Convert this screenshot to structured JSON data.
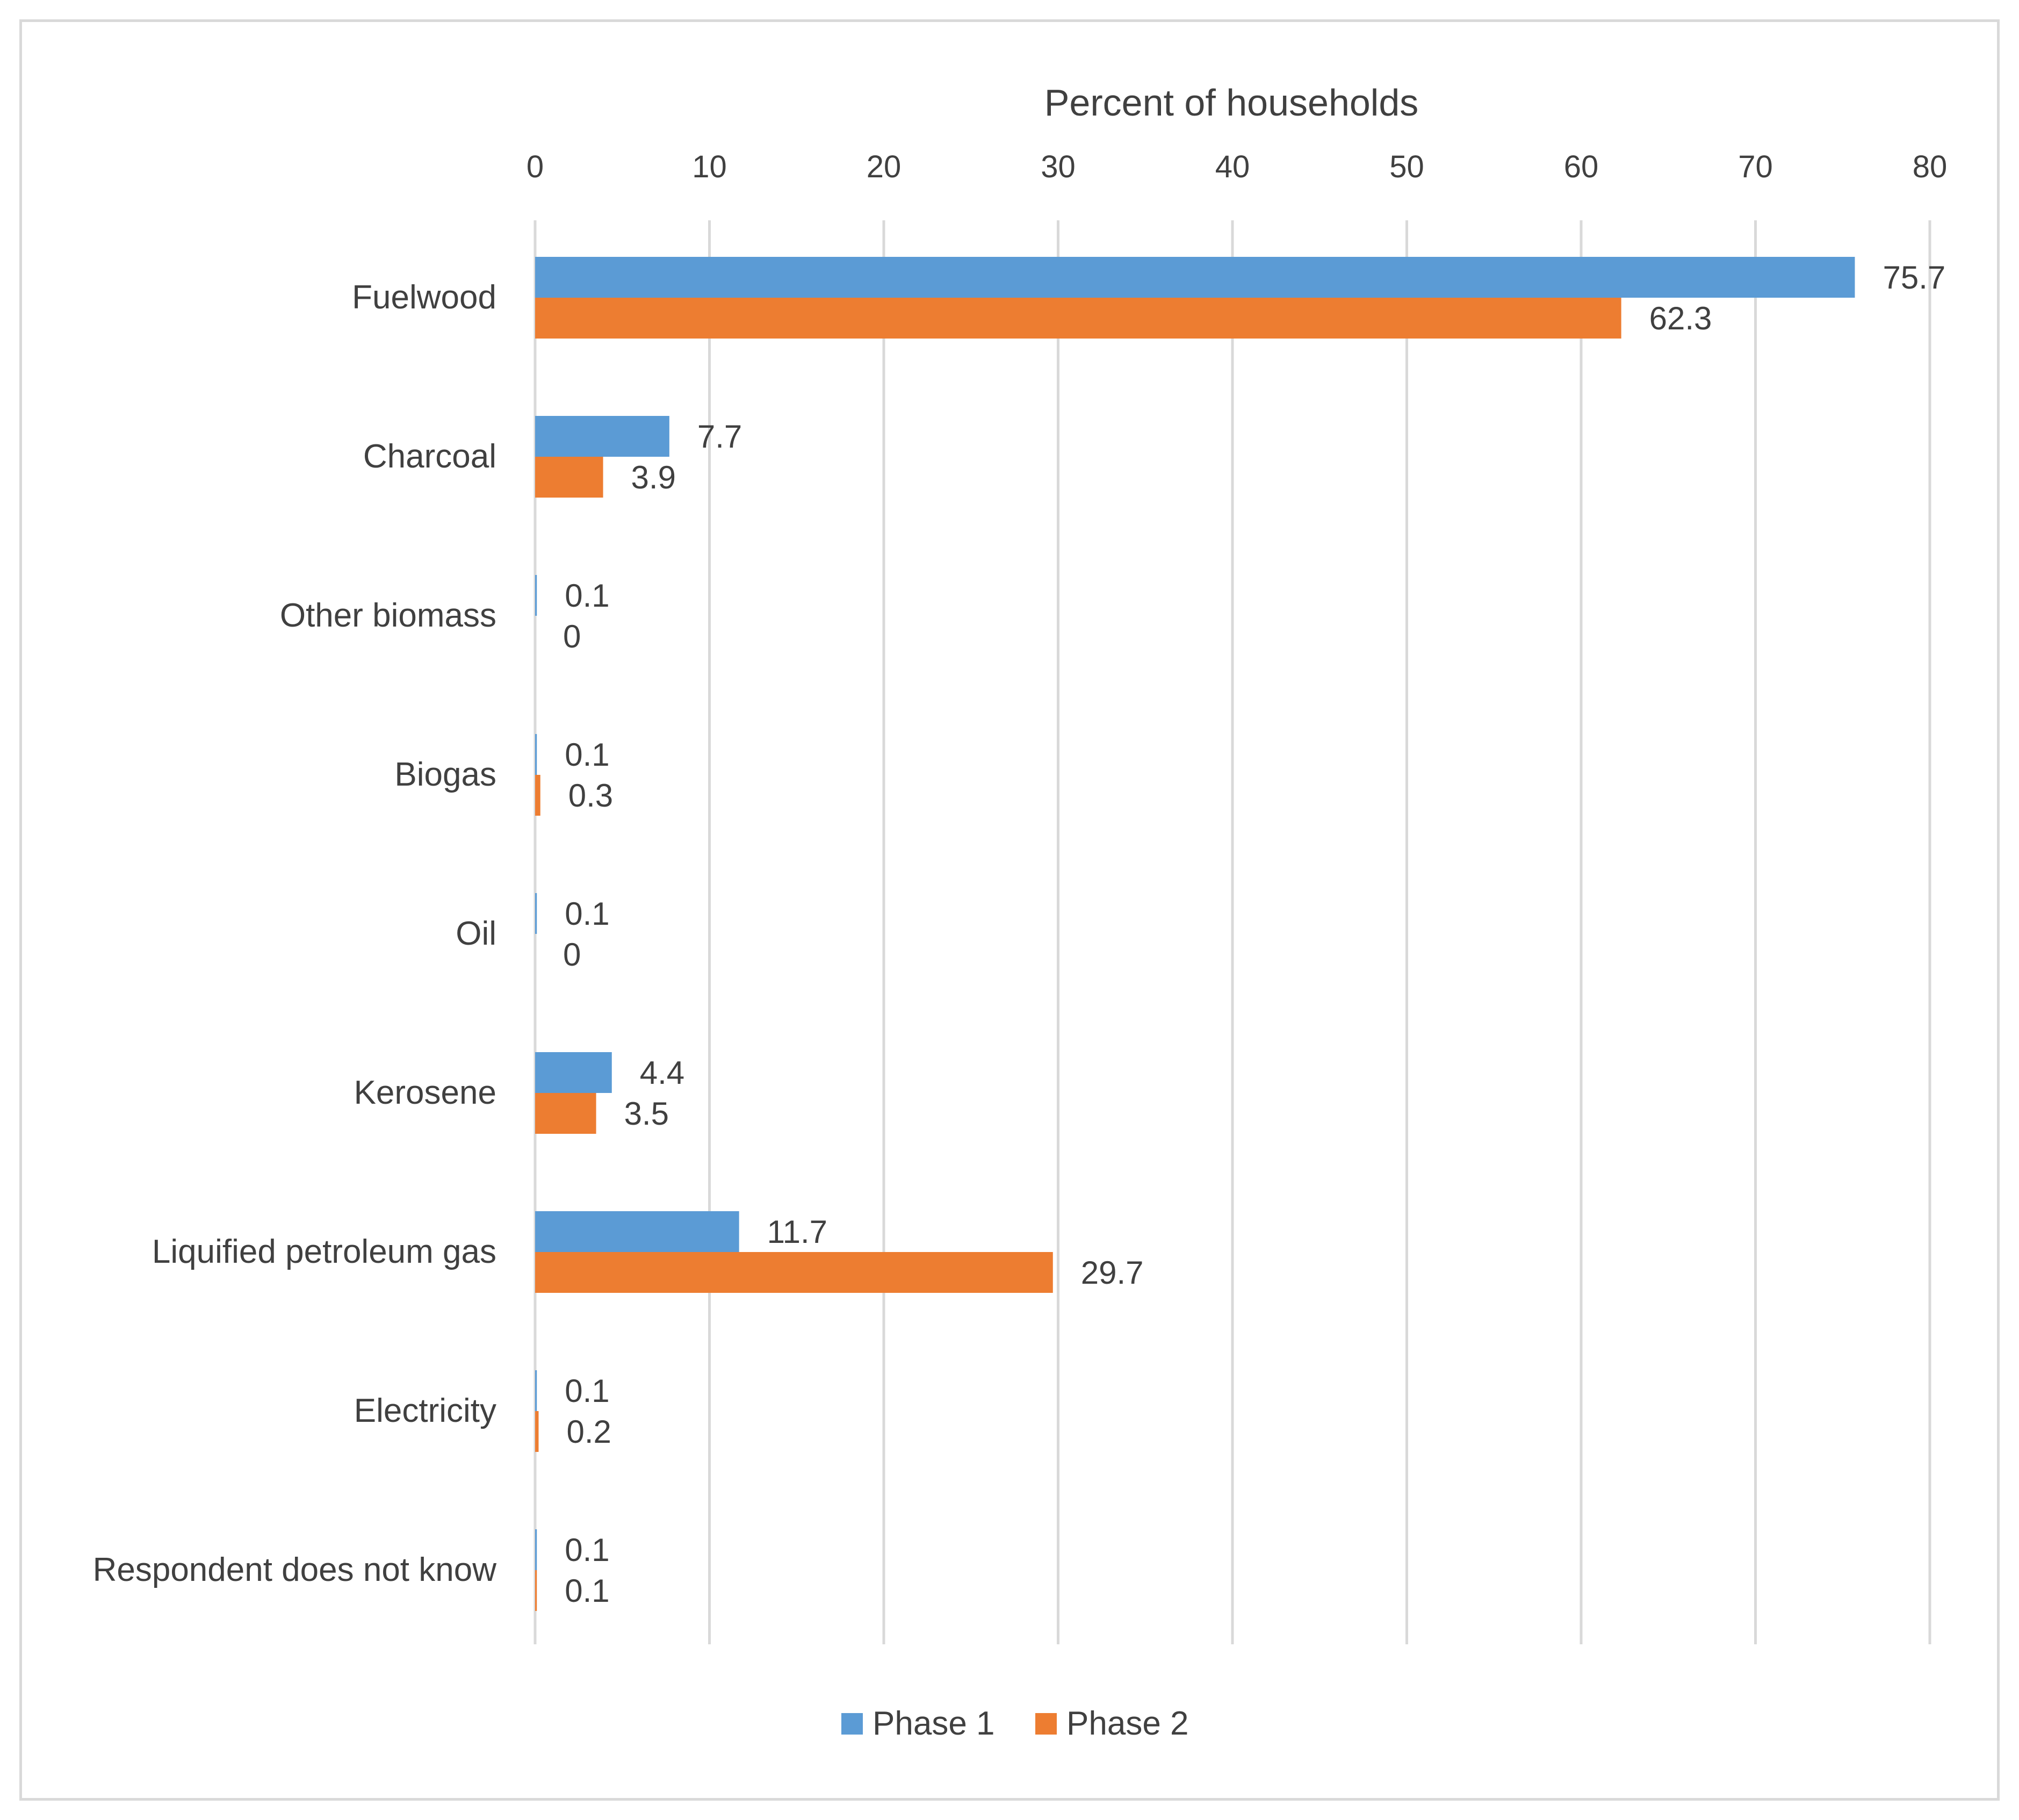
{
  "chart_data": {
    "type": "bar",
    "orientation": "horizontal",
    "title": "",
    "xlabel": "Percent of households",
    "ylabel": "",
    "xlim": [
      0,
      80
    ],
    "x_ticks": [
      "0",
      "10",
      "20",
      "30",
      "40",
      "50",
      "60",
      "70",
      "80"
    ],
    "grid": true,
    "legend_position": "bottom",
    "categories": [
      "Fuelwood",
      "Charcoal",
      "Other biomass",
      "Biogas",
      "Oil",
      "Kerosene",
      "Liquified petroleum gas",
      "Electricity",
      "Respondent does not know"
    ],
    "series": [
      {
        "name": "Phase 1",
        "color": "#5b9bd5",
        "values": [
          75.7,
          7.7,
          0.1,
          0.1,
          0.1,
          4.4,
          11.7,
          0.1,
          0.1
        ],
        "labels": [
          "75.7",
          "7.7",
          "0.1",
          "0.1",
          "0.1",
          "4.4",
          "11.7",
          "0.1",
          "0.1"
        ]
      },
      {
        "name": "Phase 2",
        "color": "#ed7d31",
        "values": [
          62.3,
          3.9,
          0,
          0.3,
          0,
          3.5,
          29.7,
          0.2,
          0.1
        ],
        "labels": [
          "62.3",
          "3.9",
          "0",
          "0.3",
          "0",
          "3.5",
          "29.7",
          "0.2",
          "0.1"
        ]
      }
    ]
  }
}
